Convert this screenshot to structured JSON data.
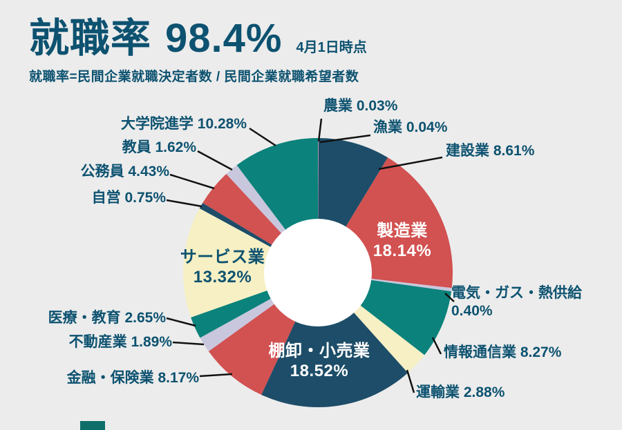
{
  "heading": {
    "title": "就職率",
    "rate": "98.4%",
    "as_of": "4月1日時点",
    "formula": "就職率=民間企業就職決定者数 / 民間企業就職希望者数"
  },
  "colors": {
    "bg": "#ececec",
    "text": "#0d5270",
    "line": "#111111",
    "hole": "#ffffff",
    "navy": "#1d4d68",
    "red": "#d25151",
    "teal": "#0b827b",
    "cream": "#f6f0c4",
    "lavender": "#c8c7dd",
    "inner_light": "#ffffff",
    "mark": "#0e6e69"
  },
  "chart_data": {
    "type": "pie",
    "donut": true,
    "unit": "%",
    "start_angle": "top",
    "direction": "clockwise",
    "total": 100,
    "segments": [
      {
        "key": "agriculture",
        "name": "農業",
        "value": 0.03,
        "color": "red"
      },
      {
        "key": "fishery",
        "name": "漁業",
        "value": 0.04,
        "color": "lavender"
      },
      {
        "key": "construction",
        "name": "建設業",
        "value": 8.61,
        "color": "navy"
      },
      {
        "key": "manufacturing",
        "name": "製造業",
        "value": 18.14,
        "color": "red",
        "inner_label": true
      },
      {
        "key": "electricity-gas-heat",
        "name": "電気・ガス・熱供給",
        "value": 0.4,
        "color": "lavender"
      },
      {
        "key": "information-communications",
        "name": "情報通信業",
        "value": 8.27,
        "color": "teal"
      },
      {
        "key": "transportation",
        "name": "運輸業",
        "value": 2.88,
        "color": "cream"
      },
      {
        "key": "wholesale-retail",
        "name": "棚卸・小売業",
        "value": 18.52,
        "color": "navy",
        "inner_label": true
      },
      {
        "key": "finance-insurance",
        "name": "金融・保険業",
        "value": 8.17,
        "color": "red"
      },
      {
        "key": "real-estate",
        "name": "不動産業",
        "value": 1.89,
        "color": "lavender"
      },
      {
        "key": "medical-education",
        "name": "医療・教育",
        "value": 2.65,
        "color": "teal"
      },
      {
        "key": "service",
        "name": "サービス業",
        "value": 13.32,
        "color": "cream",
        "inner_label": true
      },
      {
        "key": "self-employed",
        "name": "自営",
        "value": 0.75,
        "color": "navy"
      },
      {
        "key": "public-servant",
        "name": "公務員",
        "value": 4.43,
        "color": "red"
      },
      {
        "key": "teacher",
        "name": "教員",
        "value": 1.62,
        "color": "lavender"
      },
      {
        "key": "graduate-school",
        "name": "大学院進学",
        "value": 10.28,
        "color": "teal"
      }
    ]
  }
}
